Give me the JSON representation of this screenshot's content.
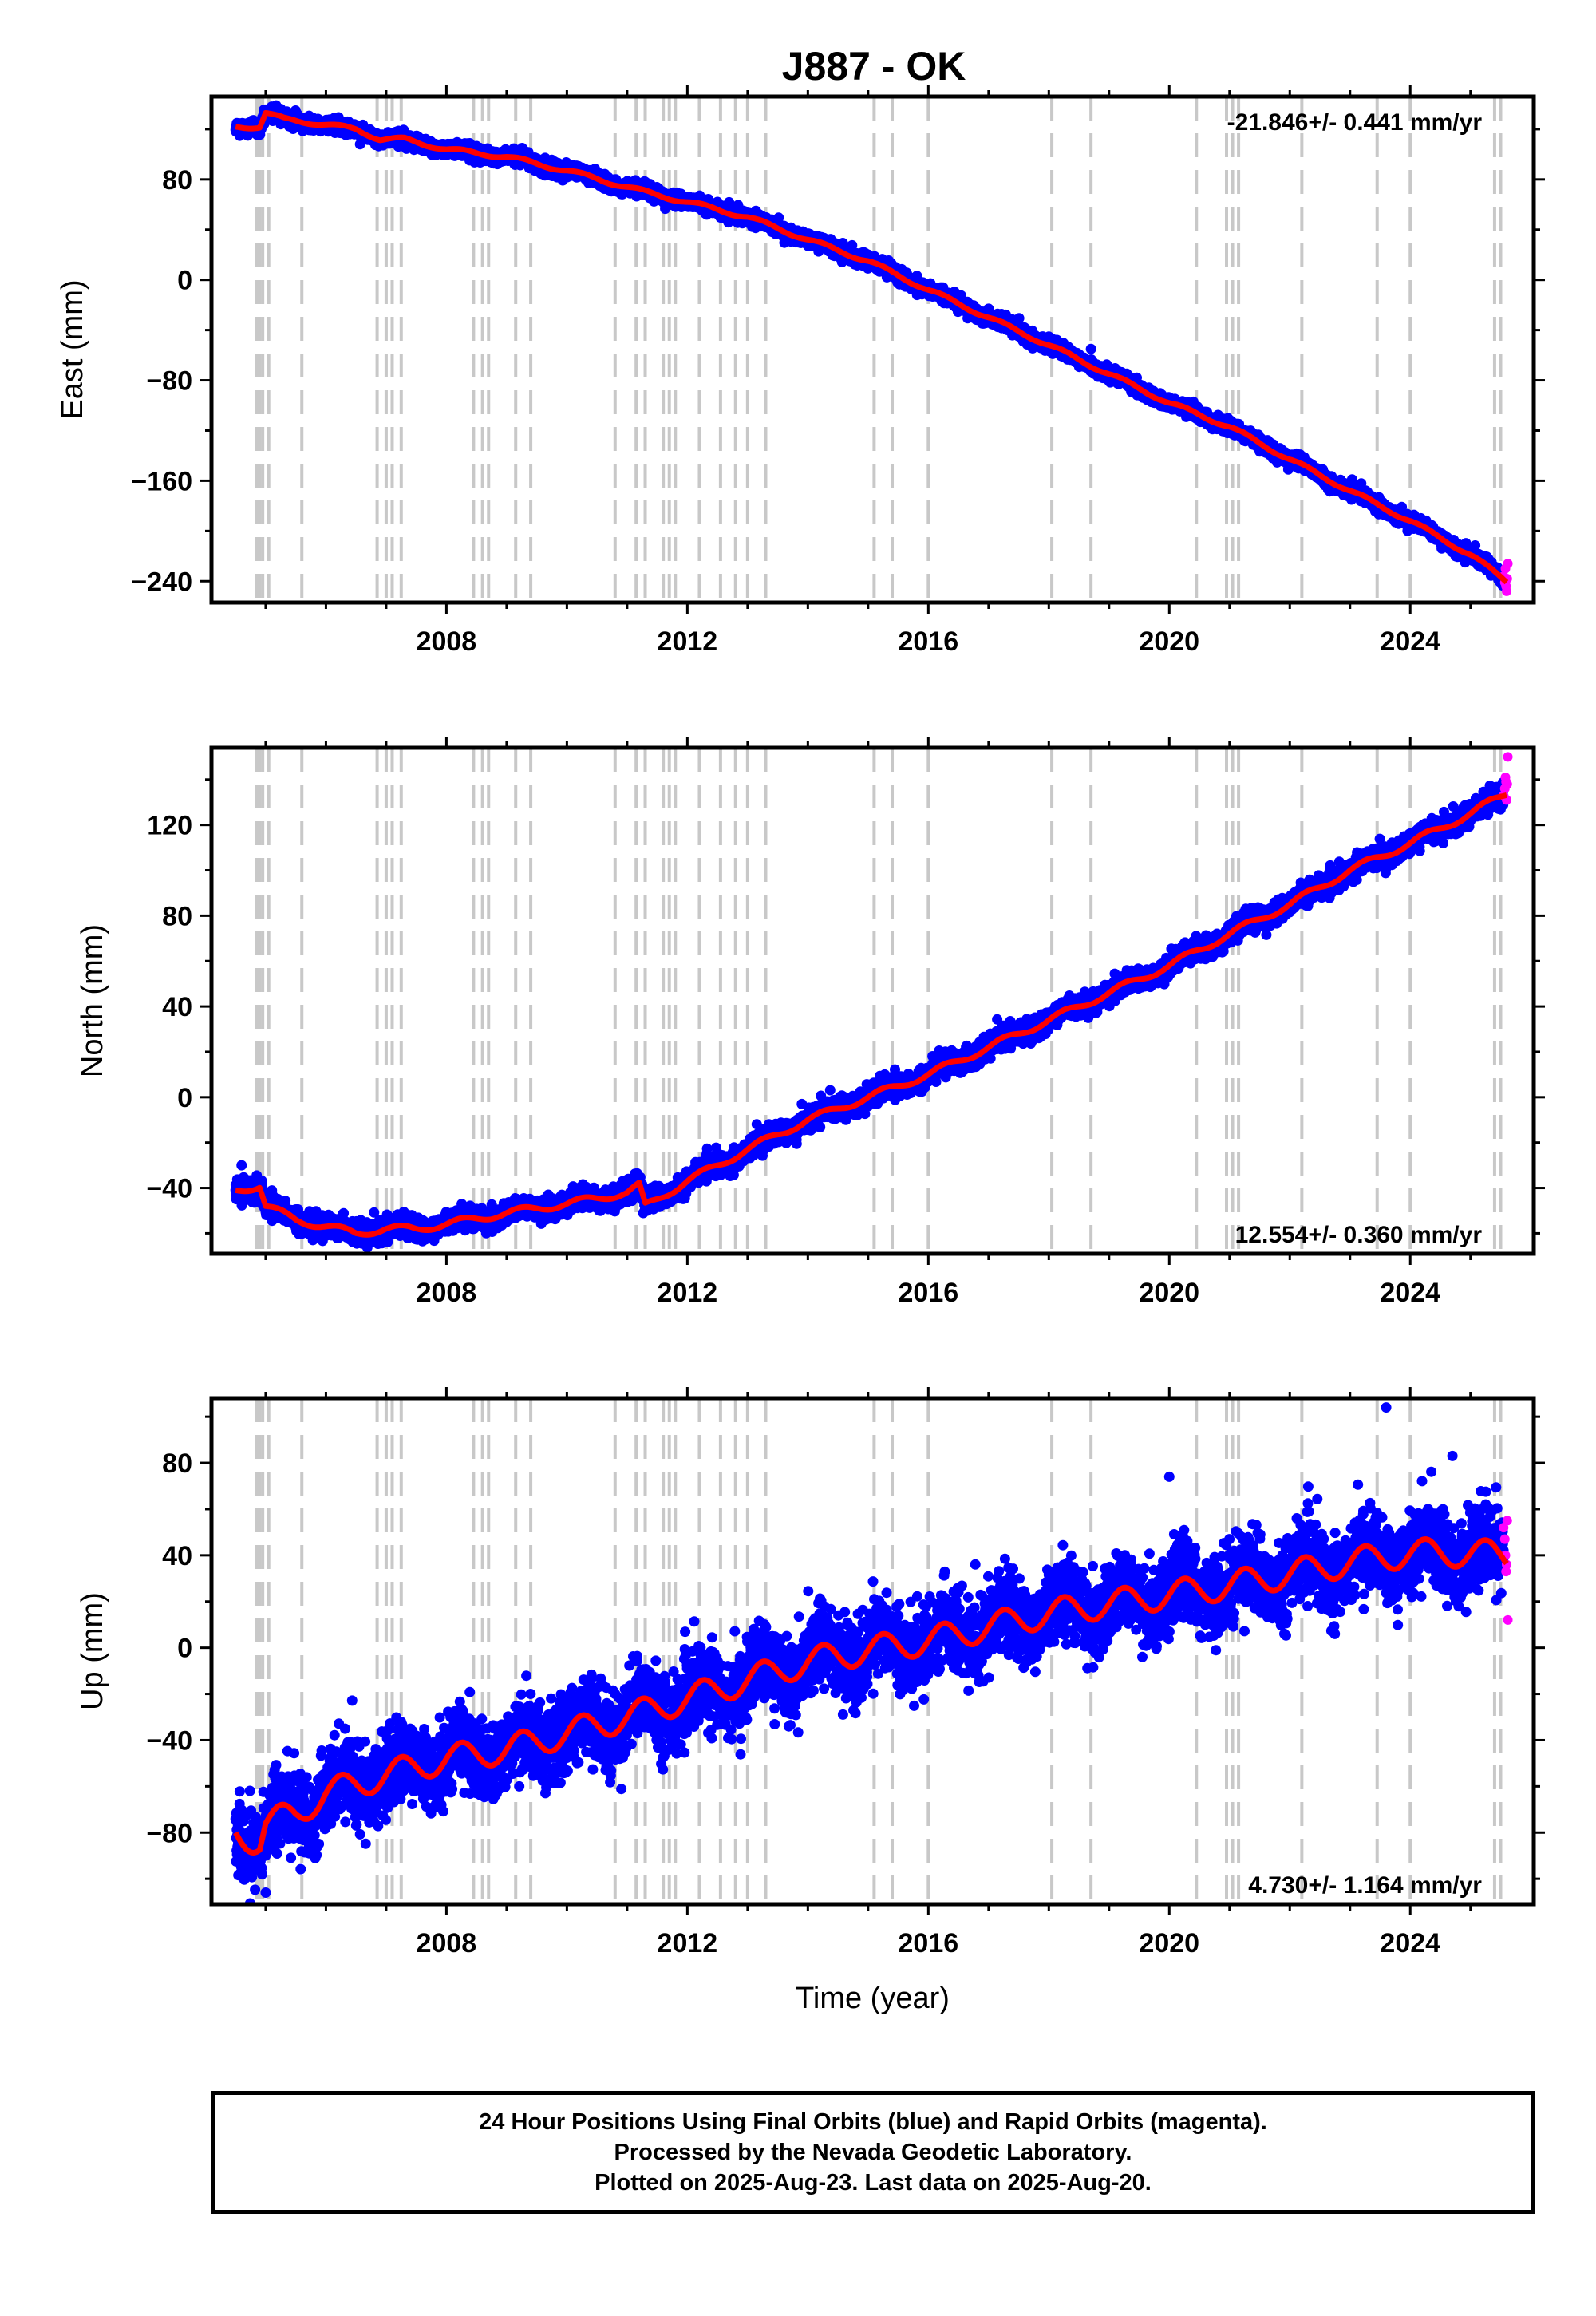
{
  "title": "J887 - OK",
  "colors": {
    "final": "#0000ff",
    "rapid": "#ff00ff",
    "model": "#ff0000",
    "event": "#c8c8c8"
  },
  "chart_data": [
    {
      "type": "scatter",
      "name": "east",
      "ylabel": "East (mm)",
      "xlabel": "",
      "xlim": [
        2004.1,
        2026.05
      ],
      "ylim": [
        -257,
        146
      ],
      "yticks": [
        -240,
        -160,
        -80,
        0,
        80
      ],
      "xticks": [
        2008,
        2012,
        2016,
        2020,
        2024
      ],
      "rate_label": "-21.846+/- 0.441 mm/yr",
      "rate_position": "top-right",
      "trend_knots": [
        [
          2004.5,
          122
        ],
        [
          2004.9,
          122
        ],
        [
          2005.0,
          133
        ],
        [
          2005.3,
          128
        ],
        [
          2005.8,
          125
        ],
        [
          2006.5,
          120
        ],
        [
          2006.9,
          112
        ],
        [
          2007.3,
          112
        ],
        [
          2008.0,
          104
        ],
        [
          2009.0,
          98
        ],
        [
          2010.0,
          87
        ],
        [
          2011.0,
          74
        ],
        [
          2011.3,
          70
        ],
        [
          2012.0,
          62
        ],
        [
          2013.0,
          50
        ],
        [
          2014.0,
          32
        ],
        [
          2015.0,
          15
        ],
        [
          2016.0,
          -8
        ],
        [
          2017.0,
          -30
        ],
        [
          2018.0,
          -52
        ],
        [
          2019.0,
          -75
        ],
        [
          2020.0,
          -98
        ],
        [
          2021.0,
          -117
        ],
        [
          2022.0,
          -143
        ],
        [
          2023.0,
          -168
        ],
        [
          2024.0,
          -192
        ],
        [
          2025.0,
          -219
        ],
        [
          2025.6,
          -240
        ]
      ],
      "seasonal_amp": 1.5,
      "noise": 2.5,
      "rapid": [
        [
          2025.55,
          -236
        ],
        [
          2025.57,
          -241
        ],
        [
          2025.58,
          -230
        ],
        [
          2025.59,
          -244
        ],
        [
          2025.61,
          -238
        ],
        [
          2025.62,
          -226
        ],
        [
          2025.6,
          -248
        ]
      ],
      "outliers": [
        [
          2018.7,
          -55
        ],
        [
          2005.1,
          138
        ]
      ]
    },
    {
      "type": "scatter",
      "name": "north",
      "ylabel": "North (mm)",
      "xlabel": "",
      "xlim": [
        2004.1,
        2026.05
      ],
      "ylim": [
        -69,
        154
      ],
      "yticks": [
        -40,
        0,
        40,
        80,
        120
      ],
      "xticks": [
        2008,
        2012,
        2016,
        2020,
        2024
      ],
      "rate_label": "12.554+/- 0.360 mm/yr",
      "rate_position": "bottom-right",
      "trend_knots": [
        [
          2004.5,
          -41
        ],
        [
          2004.9,
          -39
        ],
        [
          2005.0,
          -48
        ],
        [
          2005.5,
          -54
        ],
        [
          2006.0,
          -57
        ],
        [
          2006.5,
          -60
        ],
        [
          2007.0,
          -58
        ],
        [
          2007.5,
          -58
        ],
        [
          2008.0,
          -56
        ],
        [
          2009.0,
          -51
        ],
        [
          2010.0,
          -47
        ],
        [
          2011.0,
          -42
        ],
        [
          2011.2,
          -39
        ],
        [
          2011.3,
          -48
        ],
        [
          2012.0,
          -37
        ],
        [
          2013.0,
          -23
        ],
        [
          2014.0,
          -10
        ],
        [
          2015.0,
          0
        ],
        [
          2016.0,
          10
        ],
        [
          2017.0,
          22
        ],
        [
          2018.0,
          34
        ],
        [
          2019.0,
          46
        ],
        [
          2020.0,
          58
        ],
        [
          2021.0,
          72
        ],
        [
          2022.0,
          85
        ],
        [
          2023.0,
          100
        ],
        [
          2024.0,
          112
        ],
        [
          2025.0,
          125
        ],
        [
          2025.6,
          134
        ]
      ],
      "seasonal_amp": 1.5,
      "noise": 2.2,
      "rapid": [
        [
          2025.55,
          133
        ],
        [
          2025.57,
          136
        ],
        [
          2025.58,
          141
        ],
        [
          2025.59,
          139
        ],
        [
          2025.61,
          138
        ],
        [
          2025.62,
          150
        ],
        [
          2025.6,
          131
        ]
      ],
      "outliers": [
        [
          2013.9,
          -3
        ],
        [
          2004.6,
          -30
        ]
      ]
    },
    {
      "type": "scatter",
      "name": "up",
      "ylabel": "Up (mm)",
      "xlabel": "Time (year)",
      "xlim": [
        2004.1,
        2026.05
      ],
      "ylim": [
        -111,
        108
      ],
      "yticks": [
        -80,
        -40,
        0,
        40,
        80
      ],
      "xticks": [
        2008,
        2012,
        2016,
        2020,
        2024
      ],
      "rate_label": "4.730+/- 1.164 mm/yr",
      "rate_position": "bottom-right",
      "trend_knots": [
        [
          2004.5,
          -80
        ],
        [
          2004.9,
          -84
        ],
        [
          2005.0,
          -76
        ],
        [
          2005.5,
          -72
        ],
        [
          2006.0,
          -63
        ],
        [
          2007.0,
          -55
        ],
        [
          2008.0,
          -48
        ],
        [
          2009.0,
          -44
        ],
        [
          2010.0,
          -37
        ],
        [
          2011.0,
          -30
        ],
        [
          2012.0,
          -22
        ],
        [
          2013.0,
          -14
        ],
        [
          2014.0,
          -6
        ],
        [
          2015.0,
          -1
        ],
        [
          2016.0,
          3
        ],
        [
          2017.0,
          9
        ],
        [
          2018.0,
          15
        ],
        [
          2019.0,
          19
        ],
        [
          2020.0,
          23
        ],
        [
          2021.0,
          27
        ],
        [
          2022.0,
          32
        ],
        [
          2023.0,
          37
        ],
        [
          2024.0,
          41
        ],
        [
          2025.0,
          41
        ],
        [
          2025.6,
          40
        ]
      ],
      "seasonal_amp": 6,
      "noise": 8,
      "rapid": [
        [
          2025.55,
          52
        ],
        [
          2025.57,
          47
        ],
        [
          2025.58,
          40
        ],
        [
          2025.59,
          33
        ],
        [
          2025.61,
          55
        ],
        [
          2025.62,
          12
        ],
        [
          2025.6,
          36
        ]
      ],
      "outliers": [
        [
          2023.6,
          104
        ],
        [
          2024.7,
          83
        ],
        [
          2020.0,
          74
        ],
        [
          2005.0,
          -106
        ],
        [
          2016.5,
          24
        ]
      ]
    }
  ],
  "event_lines": [
    2004.85,
    2004.9,
    2004.95,
    2005.05,
    2005.6,
    2006.85,
    2007.0,
    2007.1,
    2007.25,
    2008.45,
    2008.6,
    2008.7,
    2009.15,
    2009.4,
    2010.8,
    2011.15,
    2011.3,
    2011.6,
    2011.7,
    2011.8,
    2012.2,
    2012.55,
    2012.8,
    2013.0,
    2013.3,
    2015.1,
    2015.4,
    2016.0,
    2018.05,
    2018.7,
    2020.45,
    2020.95,
    2021.05,
    2021.15,
    2022.2,
    2023.45,
    2024.0,
    2025.4,
    2025.5
  ],
  "footer": {
    "line1": "24 Hour Positions Using Final Orbits (blue) and Rapid Orbits (magenta).",
    "line2": "Processed by the Nevada Geodetic Laboratory.",
    "line3": "Plotted on 2025-Aug-23. Last data on 2025-Aug-20."
  }
}
